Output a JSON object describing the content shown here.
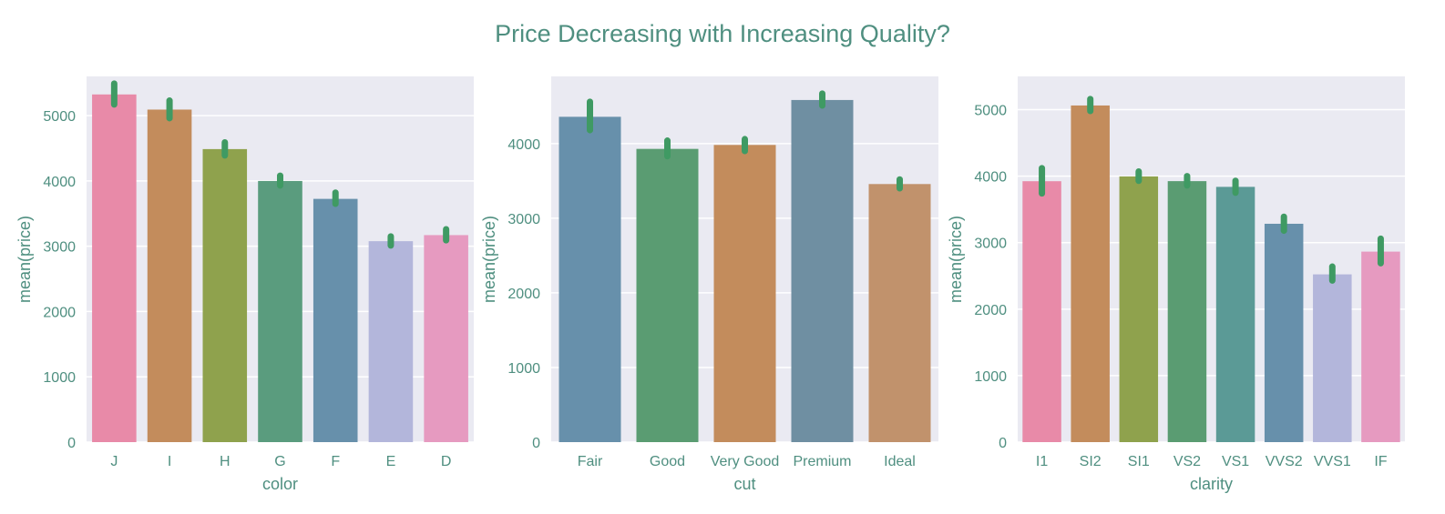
{
  "suptitle": "Price Decreasing with Increasing Quality?",
  "theme": {
    "panel_bg": "#eaeaf2",
    "grid": "#ffffff",
    "text": "#4f8f80",
    "errorbar": "#3f9a63"
  },
  "chart_data": [
    {
      "type": "bar",
      "xlabel": "color",
      "ylabel": "mean(price)",
      "ylim": [
        0,
        5600
      ],
      "yticks": [
        0,
        1000,
        2000,
        3000,
        4000,
        5000
      ],
      "grid": true,
      "categories": [
        "J",
        "I",
        "H",
        "G",
        "F",
        "E",
        "D"
      ],
      "values": [
        5324,
        5092,
        4487,
        3999,
        3725,
        3077,
        3170
      ],
      "err_low": [
        5170,
        4960,
        4390,
        3930,
        3650,
        3010,
        3090
      ],
      "err_high": [
        5490,
        5230,
        4590,
        4080,
        3820,
        3150,
        3260
      ],
      "colors": [
        "#e88aa8",
        "#c38c5c",
        "#8fa24d",
        "#5a9c7e",
        "#6790ab",
        "#b3b6db",
        "#e69ac0"
      ]
    },
    {
      "type": "bar",
      "xlabel": "cut",
      "ylabel": "mean(price)",
      "ylim": [
        0,
        4900
      ],
      "yticks": [
        0,
        1000,
        2000,
        3000,
        4000
      ],
      "grid": true,
      "categories": [
        "Fair",
        "Good",
        "Very Good",
        "Premium",
        "Ideal"
      ],
      "values": [
        4359,
        3929,
        3982,
        4584,
        3458
      ],
      "err_low": [
        4180,
        3830,
        3900,
        4510,
        3400
      ],
      "err_high": [
        4560,
        4040,
        4060,
        4670,
        3520
      ],
      "colors": [
        "#6790ab",
        "#5a9c72",
        "#c38c5c",
        "#6f8fa2",
        "#c1926c"
      ]
    },
    {
      "type": "bar",
      "xlabel": "clarity",
      "ylabel": "mean(price)",
      "ylim": [
        0,
        5500
      ],
      "yticks": [
        0,
        1000,
        2000,
        3000,
        4000,
        5000
      ],
      "grid": true,
      "categories": [
        "I1",
        "SI2",
        "SI1",
        "VS2",
        "VS1",
        "VVS2",
        "VVS1",
        "IF"
      ],
      "values": [
        3924,
        5063,
        3996,
        3925,
        3839,
        3284,
        2523,
        2865
      ],
      "err_low": [
        3740,
        4980,
        3930,
        3860,
        3750,
        3180,
        2430,
        2690
      ],
      "err_high": [
        4120,
        5160,
        4070,
        4000,
        3930,
        3390,
        2640,
        3060
      ],
      "colors": [
        "#e88aa8",
        "#c38c5c",
        "#8fa24d",
        "#5a9c72",
        "#5b9a96",
        "#6790ab",
        "#b3b6db",
        "#e69ac0"
      ]
    }
  ]
}
